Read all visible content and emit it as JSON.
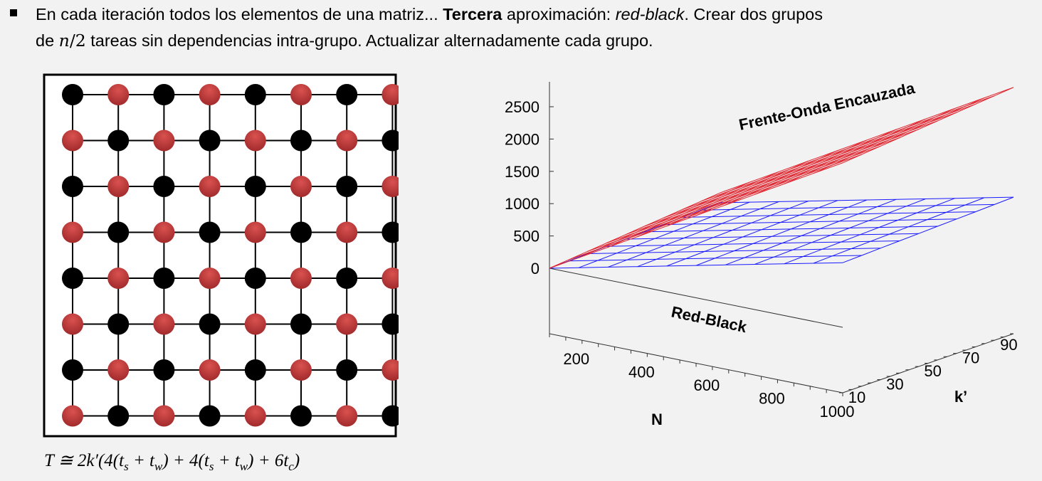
{
  "bullet": {
    "p1": "En cada iteración todos los elementos de una matriz... ",
    "bold": "Tercera",
    "p2": " aproximación: ",
    "italic": "red-black",
    "p3": ". Crear dos grupos",
    "p4": "de ",
    "math_n": "n",
    "math_div": "/2",
    "p5": " tareas sin dependencias intra-grupo. Actualizar alternadamente cada grupo."
  },
  "grid": {
    "size": 8,
    "colors": {
      "red": "#c0393b",
      "black": "#000000"
    }
  },
  "formula": {
    "part1": "T ≅ 2k′(4(t",
    "s1": "s",
    "part2": " + t",
    "w1": "w",
    "part3": ") + 4(t",
    "s2": "s",
    "part4": " + t",
    "w2": "w",
    "part5": ") + 6t",
    "c": "c",
    "part6": ")"
  },
  "chart_data": {
    "type": "surface",
    "x_axis": {
      "label": "N",
      "ticks": [
        200,
        400,
        600,
        800,
        1000
      ],
      "range": [
        100,
        1000
      ]
    },
    "y_axis": {
      "label": "k’",
      "ticks": [
        10,
        30,
        50,
        70,
        90
      ],
      "range": [
        10,
        100
      ]
    },
    "z_axis": {
      "ticks": [
        0,
        500,
        1000,
        1500,
        2000,
        2500
      ],
      "range": [
        0,
        2500
      ]
    },
    "series": [
      {
        "name": "Frente-Onda Encauzada",
        "color": "#e0202a",
        "z_at_min": 0,
        "z_at_max": 2800
      },
      {
        "name": "Red-Black",
        "color": "#1a1aff",
        "z_at_min": 0,
        "z_at_max": 1100
      }
    ]
  }
}
